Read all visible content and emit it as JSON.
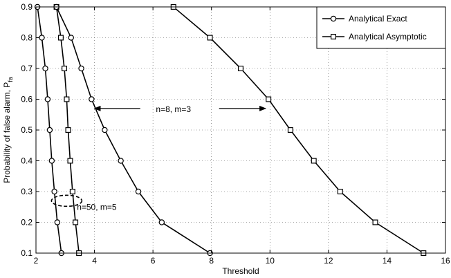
{
  "chart_data": {
    "type": "line",
    "title": "",
    "xlabel": "Threshold",
    "ylabel": "Probability of false alarm, P",
    "ylabel_sub": "fa",
    "xlim": [
      2,
      16
    ],
    "ylim": [
      0.1,
      0.9
    ],
    "xticks": [
      2,
      4,
      6,
      8,
      10,
      12,
      14,
      16
    ],
    "yticks": [
      0.1,
      0.2,
      0.3,
      0.4,
      0.5,
      0.6,
      0.7,
      0.8,
      0.9
    ],
    "grid": "dotted",
    "legend_position": "top-right",
    "series": [
      {
        "name": "Analytical Exact",
        "marker": "circle",
        "label": "n=50, m=5",
        "x": [
          2.05,
          2.2,
          2.32,
          2.4,
          2.47,
          2.54,
          2.63,
          2.73,
          2.87
        ],
        "y": [
          0.9,
          0.8,
          0.7,
          0.6,
          0.5,
          0.4,
          0.3,
          0.2,
          0.1
        ]
      },
      {
        "name": "Analytical Asymptotic",
        "marker": "square",
        "label": "n=50, m=5",
        "x": [
          2.7,
          2.85,
          2.97,
          3.05,
          3.1,
          3.17,
          3.25,
          3.35,
          3.47
        ],
        "y": [
          0.9,
          0.8,
          0.7,
          0.6,
          0.5,
          0.4,
          0.3,
          0.2,
          0.1
        ]
      },
      {
        "name": "Analytical Exact",
        "marker": "circle",
        "label": "n=8, m=3",
        "x": [
          2.7,
          3.2,
          3.55,
          3.9,
          4.35,
          4.9,
          5.5,
          6.3,
          7.95
        ],
        "y": [
          0.9,
          0.8,
          0.7,
          0.6,
          0.5,
          0.4,
          0.3,
          0.2,
          0.1
        ]
      },
      {
        "name": "Analytical Asymptotic",
        "marker": "square",
        "label": "n=8, m=3",
        "x": [
          6.7,
          7.95,
          9.0,
          9.95,
          10.7,
          11.5,
          12.4,
          13.6,
          15.25
        ],
        "y": [
          0.9,
          0.8,
          0.7,
          0.6,
          0.5,
          0.4,
          0.3,
          0.2,
          0.1
        ]
      }
    ],
    "legend": [
      {
        "label": "Analytical Exact",
        "marker": "circle"
      },
      {
        "label": "Analytical Asymptotic",
        "marker": "square"
      }
    ],
    "annotations": [
      {
        "text": "n=8, m=3",
        "x": 6.7,
        "y": 0.57,
        "arrows_to": [
          [
            3.95,
            0.57
          ],
          [
            9.9,
            0.57
          ]
        ]
      },
      {
        "text": "n=50, m=5",
        "x": 3.4,
        "y": 0.24,
        "ellipse_center": [
          3.05,
          0.27
        ]
      }
    ]
  }
}
